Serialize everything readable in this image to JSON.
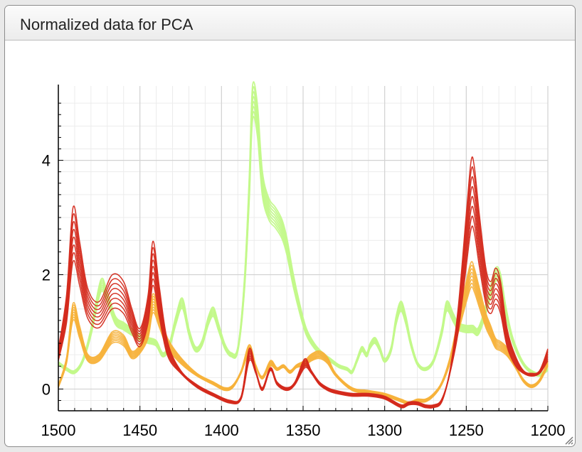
{
  "window": {
    "title": "Normalized data for PCA"
  },
  "chart_data": {
    "type": "line",
    "title": "",
    "xlabel": "",
    "ylabel": "",
    "xlim": [
      1500,
      1200
    ],
    "ylim": [
      -0.38,
      5.3
    ],
    "x_reversed": true,
    "x_ticks": [
      1500,
      1450,
      1400,
      1350,
      1300,
      1250,
      1200
    ],
    "x_tick_labels": [
      "1500",
      "1450",
      "1400",
      "1350",
      "1300",
      "1250",
      "1200"
    ],
    "y_ticks": [
      0,
      2,
      4
    ],
    "y_tick_labels": [
      "0",
      "2",
      "4"
    ],
    "grid": true,
    "legend": "none",
    "colors": {
      "red": "#d42a1c",
      "orange": "#f7b23b",
      "green": "#c3f98a",
      "grid_major": "#d2d2d2",
      "grid_minor": "#ececec"
    },
    "series": [
      {
        "color": "red",
        "count": 8,
        "x": [
          1500,
          1495,
          1491,
          1487,
          1482,
          1475,
          1467,
          1460,
          1455,
          1450,
          1445,
          1442,
          1438,
          1433,
          1425,
          1415,
          1405,
          1395,
          1388,
          1383,
          1379,
          1375,
          1370,
          1366,
          1360,
          1355,
          1349,
          1345,
          1340,
          1335,
          1330,
          1320,
          1310,
          1300,
          1290,
          1285,
          1280,
          1275,
          1270,
          1265,
          1260,
          1255,
          1250,
          1247,
          1245,
          1242,
          1238,
          1235,
          1232,
          1229,
          1225,
          1220,
          1215,
          1210,
          1205,
          1200
        ],
        "values": [
          0.6,
          1.4,
          2.7,
          2.2,
          1.5,
          1.3,
          1.7,
          1.6,
          1.2,
          0.9,
          1.4,
          2.2,
          1.5,
          0.7,
          0.3,
          0.05,
          -0.1,
          -0.22,
          -0.15,
          0.6,
          0.3,
          0.0,
          0.35,
          0.1,
          0.0,
          0.1,
          0.45,
          0.3,
          0.1,
          0.0,
          -0.05,
          -0.1,
          -0.1,
          -0.15,
          -0.3,
          -0.25,
          -0.25,
          -0.3,
          -0.3,
          -0.2,
          0.3,
          1.2,
          2.6,
          3.4,
          3.3,
          2.6,
          1.8,
          1.6,
          1.8,
          1.6,
          0.9,
          0.5,
          0.3,
          0.25,
          0.3,
          0.6
        ],
        "spread": 0.35
      },
      {
        "color": "orange",
        "count": 8,
        "x": [
          1500,
          1495,
          1491,
          1487,
          1482,
          1475,
          1467,
          1460,
          1455,
          1450,
          1445,
          1442,
          1438,
          1433,
          1425,
          1415,
          1405,
          1398,
          1393,
          1388,
          1383,
          1379,
          1375,
          1370,
          1366,
          1362,
          1358,
          1354,
          1349,
          1345,
          1340,
          1335,
          1330,
          1320,
          1310,
          1300,
          1290,
          1285,
          1280,
          1275,
          1270,
          1265,
          1260,
          1255,
          1250,
          1247,
          1245,
          1242,
          1238,
          1235,
          1232,
          1229,
          1225,
          1220,
          1215,
          1210,
          1205,
          1200
        ],
        "values": [
          0.05,
          0.5,
          1.35,
          1.0,
          0.55,
          0.55,
          0.9,
          0.85,
          0.6,
          0.7,
          1.0,
          1.5,
          1.2,
          0.8,
          0.5,
          0.25,
          0.1,
          0.0,
          0.05,
          0.3,
          0.7,
          0.4,
          0.2,
          0.45,
          0.35,
          0.4,
          0.3,
          0.4,
          0.45,
          0.55,
          0.6,
          0.5,
          0.25,
          0.0,
          -0.05,
          -0.1,
          -0.2,
          -0.25,
          -0.2,
          -0.2,
          -0.1,
          0.1,
          0.5,
          1.1,
          1.7,
          2.0,
          1.9,
          1.6,
          1.2,
          1.0,
          0.8,
          0.75,
          0.65,
          0.4,
          0.15,
          0.05,
          0.15,
          0.45
        ],
        "spread": 0.22
      },
      {
        "color": "green",
        "count": 8,
        "x": [
          1500,
          1495,
          1490,
          1485,
          1480,
          1474,
          1470,
          1465,
          1460,
          1455,
          1450,
          1445,
          1440,
          1436,
          1432,
          1428,
          1424,
          1420,
          1416,
          1412,
          1408,
          1405,
          1402,
          1398,
          1394,
          1390,
          1386,
          1383,
          1381,
          1378,
          1375,
          1371,
          1367,
          1363,
          1360,
          1356,
          1352,
          1348,
          1343,
          1338,
          1333,
          1328,
          1323,
          1320,
          1317,
          1314,
          1311,
          1309,
          1306,
          1303,
          1300,
          1296,
          1293,
          1290,
          1287,
          1284,
          1280,
          1275,
          1270,
          1265,
          1262,
          1258,
          1255,
          1250,
          1246,
          1243,
          1240,
          1236,
          1232,
          1229,
          1226,
          1222,
          1218,
          1214,
          1210,
          1205,
          1200
        ],
        "values": [
          0.45,
          0.35,
          0.3,
          0.5,
          1.0,
          1.8,
          1.6,
          1.2,
          1.1,
          1.0,
          0.9,
          0.85,
          0.8,
          0.6,
          0.75,
          1.2,
          1.5,
          1.0,
          0.7,
          0.8,
          1.2,
          1.35,
          1.1,
          0.75,
          0.6,
          0.7,
          1.8,
          3.5,
          5.0,
          4.7,
          3.6,
          3.15,
          3.0,
          2.8,
          2.5,
          1.9,
          1.4,
          1.0,
          0.75,
          0.6,
          0.5,
          0.4,
          0.35,
          0.3,
          0.5,
          0.7,
          0.6,
          0.75,
          0.85,
          0.7,
          0.5,
          0.7,
          1.2,
          1.45,
          1.2,
          0.8,
          0.45,
          0.35,
          0.5,
          1.0,
          1.45,
          1.25,
          1.1,
          1.05,
          1.05,
          1.0,
          1.2,
          1.6,
          2.0,
          1.9,
          1.4,
          0.9,
          0.6,
          0.4,
          0.3,
          0.25,
          0.35
        ],
        "spread": 0.12
      }
    ]
  }
}
